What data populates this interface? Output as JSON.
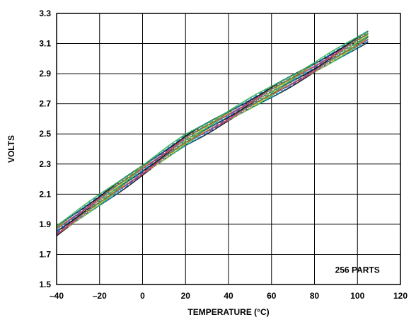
{
  "chart_data": {
    "type": "line",
    "xlabel": "TEMPERATURE (°C)",
    "ylabel": "VOLTS",
    "xlim": [
      -40,
      120
    ],
    "ylim": [
      1.5,
      3.3
    ],
    "x_ticks": [
      -40,
      -20,
      0,
      20,
      40,
      60,
      80,
      100,
      120
    ],
    "x_tick_labels": [
      "–40",
      "–20",
      "0",
      "20",
      "40",
      "60",
      "80",
      "100",
      "120"
    ],
    "y_ticks": [
      1.5,
      1.7,
      1.9,
      2.1,
      2.3,
      2.5,
      2.7,
      2.9,
      3.1,
      3.3
    ],
    "y_tick_labels": [
      "1.5",
      "1.7",
      "1.9",
      "2.1",
      "2.3",
      "2.5",
      "2.7",
      "2.9",
      "3.1",
      "3.3"
    ],
    "grid": true,
    "annotation": "256 PARTS",
    "band": {
      "x": [
        -40,
        -20,
        0,
        20,
        40,
        60,
        80,
        105
      ],
      "center": [
        1.86,
        2.06,
        2.26,
        2.46,
        2.62,
        2.78,
        2.94,
        3.15
      ],
      "spread": 0.035
    },
    "series_colors": [
      "#000000",
      "#1a73c9",
      "#17a9b8",
      "#3cb44b",
      "#c8c832",
      "#8f3fbf",
      "#e6194b",
      "#4363d8",
      "#f58231",
      "#808000",
      "#469990",
      "#555555"
    ]
  }
}
